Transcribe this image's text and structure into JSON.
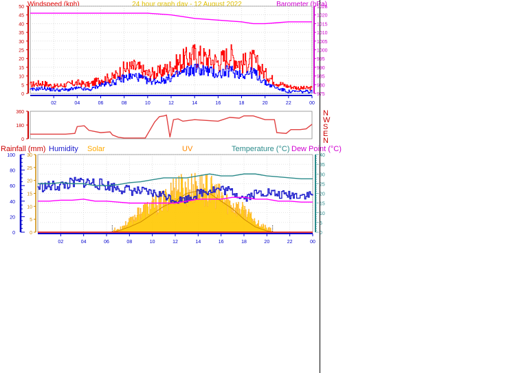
{
  "header": {
    "windspeed_label": "Windspeed (kph)",
    "title": "24 hour graph day - 12 August 2022",
    "barometer_label": "Barometer (hPa)"
  },
  "colors": {
    "gust": "#ff0000",
    "wind": "#0000ff",
    "baro": "#ff00ff",
    "dir": "#e04040",
    "humidity": "#1c1ccc",
    "temperature": "#2a8a8a",
    "dewpoint": "#ff00ff",
    "solar": "#ffa500",
    "solar_fill": "#ffc800",
    "uv": "#cc8800",
    "rain_axis": "#0000cc",
    "panel_bg": "#ffffff",
    "grid": "#cccccc"
  },
  "legend2": {
    "rain": "Rainfall (mm)",
    "humidity": "Humidity",
    "solar": "Solar",
    "uv": "UV",
    "temperature": "Temperature (°C)",
    "dewpoint": "Dew Point (°C)"
  },
  "compass": [
    "N",
    "W",
    "S",
    "E",
    "N"
  ],
  "chart_data": [
    {
      "type": "line",
      "xlim": [
        0,
        24
      ],
      "x_ticks": [
        "02",
        "04",
        "06",
        "08",
        "10",
        "12",
        "14",
        "16",
        "18",
        "20",
        "22",
        "00"
      ],
      "y_left_lim": [
        0,
        50
      ],
      "y_left_ticks": [
        "0",
        "5",
        "10",
        "15",
        "20",
        "25",
        "30",
        "35",
        "40",
        "45",
        "50"
      ],
      "y_right_lim": [
        975,
        1025
      ],
      "y_right_ticks": [
        "975",
        "980",
        "985",
        "990",
        "995",
        "1000",
        "1005",
        "1010",
        "1015",
        "1020",
        "1025"
      ],
      "series": [
        {
          "name": "Barometer",
          "axis": "right",
          "x": [
            0,
            2,
            4,
            6,
            8,
            10,
            12,
            13,
            14,
            15,
            16,
            17,
            18,
            19,
            20,
            21,
            22,
            23,
            24
          ],
          "values": [
            1021,
            1021,
            1021,
            1021,
            1021,
            1021,
            1020,
            1019,
            1018,
            1017.5,
            1017,
            1016.5,
            1016,
            1015,
            1015,
            1015.5,
            1016,
            1016,
            1016
          ]
        },
        {
          "name": "Gust",
          "axis": "left",
          "x": [
            0,
            1,
            2,
            3,
            4,
            5,
            6,
            7,
            8,
            9,
            10,
            11,
            12,
            13,
            14,
            15,
            16,
            17,
            18,
            19,
            20,
            21,
            22,
            23,
            24
          ],
          "values": [
            5,
            6,
            4,
            5,
            6,
            5,
            8,
            9,
            14,
            15,
            11,
            12,
            15,
            19,
            22,
            20,
            18,
            22,
            17,
            19,
            11,
            6,
            4,
            3,
            3
          ]
        },
        {
          "name": "Windspeed",
          "axis": "left",
          "x": [
            0,
            1,
            2,
            3,
            4,
            5,
            6,
            7,
            8,
            9,
            10,
            11,
            12,
            13,
            14,
            15,
            16,
            17,
            18,
            19,
            20,
            21,
            22,
            23,
            24
          ],
          "values": [
            2,
            3,
            2,
            2,
            3,
            2,
            5,
            6,
            9,
            10,
            7,
            7,
            9,
            12,
            14,
            13,
            11,
            13,
            11,
            12,
            6,
            3,
            1,
            1,
            1
          ]
        }
      ]
    },
    {
      "type": "line",
      "xlim": [
        0,
        24
      ],
      "y_lim": [
        0,
        360
      ],
      "y_ticks": [
        "0",
        "180",
        "360"
      ],
      "series": [
        {
          "name": "Wind Direction",
          "x": [
            0,
            1,
            2,
            3,
            3.8,
            4.0,
            4.6,
            5,
            6,
            6.8,
            7,
            7.5,
            8,
            8.5,
            9.8,
            10.6,
            11,
            11.4,
            11.6,
            11.9,
            12.2,
            12.6,
            13,
            14,
            15,
            16,
            17,
            17.8,
            18.2,
            19,
            20,
            20.8,
            21,
            21.8,
            22.2,
            23,
            23.5,
            24
          ],
          "values": [
            60,
            60,
            60,
            60,
            70,
            160,
            170,
            110,
            80,
            90,
            50,
            20,
            10,
            10,
            10,
            220,
            290,
            300,
            310,
            20,
            250,
            260,
            230,
            250,
            240,
            230,
            280,
            270,
            300,
            300,
            250,
            250,
            80,
            70,
            120,
            120,
            130,
            190
          ]
        }
      ]
    },
    {
      "type": "line",
      "xlim": [
        0,
        24
      ],
      "x_ticks": [
        "02",
        "04",
        "06",
        "08",
        "10",
        "12",
        "14",
        "16",
        "18",
        "20",
        "22",
        "00"
      ],
      "rain_lim": [
        0,
        100
      ],
      "rain_ticks": [
        "0",
        "20",
        "40",
        "60",
        "80",
        "100"
      ],
      "left2_lim": [
        0,
        30
      ],
      "left2_ticks": [
        "0",
        "5",
        "10",
        "15",
        "20",
        "25",
        "30"
      ],
      "right_lim": [
        0,
        40
      ],
      "right_ticks": [
        "0",
        "5",
        "10",
        "15",
        "20",
        "25",
        "30",
        "35",
        "40"
      ],
      "series": [
        {
          "name": "Humidity",
          "axis": "rain",
          "x": [
            0,
            1,
            2,
            3,
            4,
            5,
            6,
            7,
            8,
            9,
            10,
            11,
            12,
            13,
            14,
            15,
            16,
            17,
            18,
            19,
            20,
            21,
            22,
            23,
            24
          ],
          "values": [
            58,
            59,
            60,
            63,
            65,
            63,
            60,
            57,
            54,
            52,
            50,
            48,
            41,
            43,
            50,
            55,
            55,
            52,
            44,
            50,
            52,
            48,
            48,
            48,
            48
          ]
        },
        {
          "name": "Temperature",
          "axis": "right",
          "x": [
            0,
            1,
            2,
            3,
            4,
            5,
            6,
            7,
            8,
            9,
            10,
            11,
            12,
            13,
            14,
            15,
            16,
            17,
            18,
            19,
            20,
            21,
            22,
            23,
            24
          ],
          "values": [
            25,
            25,
            25.5,
            25,
            25,
            24,
            24,
            24.5,
            25.5,
            26,
            27,
            28,
            28,
            28,
            29,
            30,
            29,
            29,
            30,
            30,
            29,
            28.5,
            28,
            27.5,
            27.5
          ]
        },
        {
          "name": "Dew Point",
          "axis": "right",
          "x": [
            0,
            1,
            2,
            3,
            4,
            5,
            6,
            7,
            8,
            9,
            10,
            11,
            12,
            13,
            14,
            15,
            16,
            17,
            18,
            19,
            20,
            21,
            22,
            23,
            24
          ],
          "values": [
            16,
            16,
            16.5,
            16.5,
            17,
            16,
            16,
            15.5,
            15,
            15,
            15,
            15,
            15,
            16,
            17,
            17,
            17,
            18,
            18,
            17,
            17,
            16,
            16,
            15.5,
            15.5
          ]
        },
        {
          "name": "Solar",
          "axis": "left2",
          "x": [
            6.5,
            7,
            8,
            9,
            10,
            11,
            12,
            13,
            14,
            15,
            16,
            17,
            18,
            19,
            20,
            20.5
          ],
          "values": [
            0,
            1,
            4,
            8,
            10,
            12,
            17,
            16,
            17,
            16,
            13,
            10,
            8,
            4,
            1,
            0
          ]
        },
        {
          "name": "UV",
          "axis": "left2",
          "x": [
            6.5,
            7,
            8,
            9,
            10,
            11,
            12,
            13,
            14,
            15,
            16,
            17,
            18,
            19,
            20,
            20.5
          ],
          "values": [
            0,
            0.5,
            2,
            4,
            7,
            10,
            12,
            15,
            16,
            15,
            12,
            9,
            5,
            2,
            0.5,
            0
          ]
        }
      ]
    }
  ]
}
